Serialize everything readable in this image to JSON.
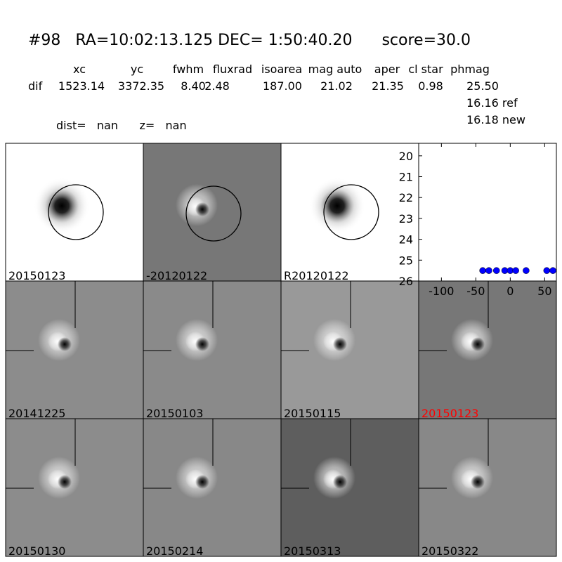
{
  "header": {
    "title": "#98   RA=10:02:13.125 DEC= 1:50:40.20      score=30.0",
    "columns": [
      "xc",
      "yc",
      "fwhm",
      "fluxrad",
      "isoarea",
      "mag auto",
      "aper",
      "cl star",
      "phmag"
    ],
    "row_label": "dif",
    "row_values": [
      "1523.14",
      "3372.35",
      "8.40",
      "2.48",
      "187.00",
      "21.02",
      "21.35",
      "0.98",
      "25.50"
    ],
    "extra": [
      "16.16 ref",
      "16.18 new"
    ],
    "dist": "dist=   nan      z=   nan"
  },
  "panels": [
    "20150123",
    "-20120122",
    "R20120122",
    "20141225",
    "20150103",
    "20150115",
    "20150123",
    "20150130",
    "20150214",
    "20150313",
    "20150322"
  ],
  "plot": {
    "type": "scatter",
    "color": "#0000ff",
    "x": [
      -40,
      -31,
      -20,
      -8,
      0,
      8,
      23,
      53,
      62
    ],
    "y": [
      25.5,
      25.5,
      25.5,
      25.5,
      25.5,
      25.5,
      25.5,
      25.5,
      25.5
    ],
    "xlim": [
      -133,
      67
    ],
    "ylim": [
      26,
      19.4
    ],
    "xticks": [
      -100,
      -50,
      0,
      50
    ],
    "yticks": [
      20,
      21,
      22,
      23,
      24,
      25,
      26
    ]
  }
}
